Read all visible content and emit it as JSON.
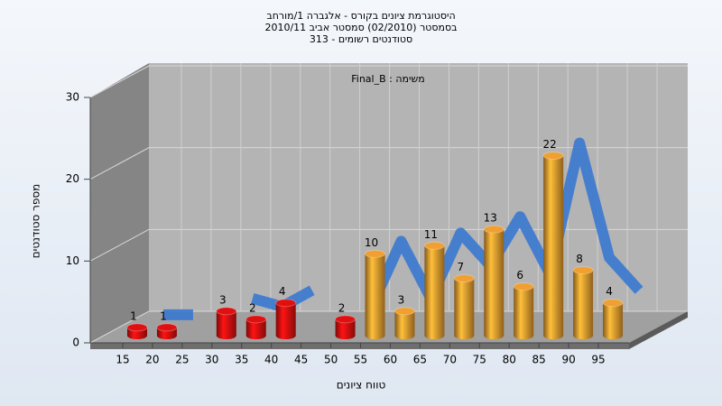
{
  "chart_data": {
    "type": "bar3d",
    "title": [
      "היסטוגרמת ציונים בקורס - אלגברה 1/מורחב",
      "בסמסטר (02/2010) סמסטר אביב 2010/11",
      "313 - סטודנטים רשומים"
    ],
    "subtitle": "משימה : Final_B",
    "x_label": "טווח ציונים",
    "y_label": "מספר סטודנטים",
    "categories": [
      "15",
      "20",
      "25",
      "30",
      "35",
      "40",
      "45",
      "50",
      "55",
      "60",
      "65",
      "70",
      "75",
      "80",
      "85",
      "90",
      "95"
    ],
    "values": [
      1,
      1,
      null,
      3,
      2,
      4,
      null,
      2,
      10,
      3,
      11,
      7,
      13,
      6,
      22,
      8,
      4
    ],
    "bar_colors": [
      "#e01010",
      "#e01010",
      "#e01010",
      "#e01010",
      "#e01010",
      "#e01010",
      "#e01010",
      "#e01010",
      "#f0a030",
      "#f0a030",
      "#f0a030",
      "#f0a030",
      "#f0a030",
      "#f0a030",
      "#f0a030",
      "#f0a030",
      "#f0a030"
    ],
    "trend_color": "#3a78d0",
    "ylim": [
      0,
      30
    ],
    "yticks": [
      0,
      10,
      20,
      30
    ],
    "grid": true
  }
}
